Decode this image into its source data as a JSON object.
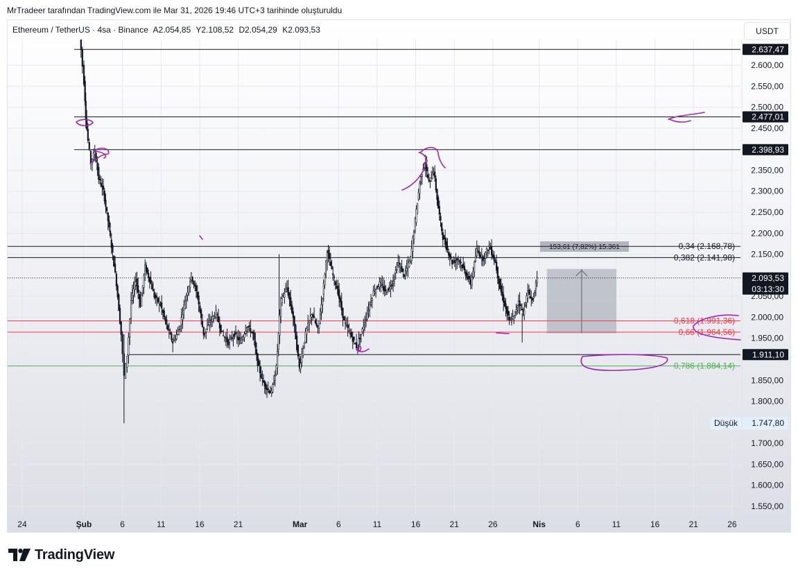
{
  "caption": "MrTradeer tarafından TradingView.com ile Mar 31, 2026 19:46 UTC+3 tarihinde oluşturuldu",
  "legend": {
    "symbol": "Ethereum / TetherUS · 4sa · Binance",
    "open": "A2.054,85",
    "high": "Y2.108,52",
    "low": "D2.054,29",
    "close": "K2.093,53"
  },
  "currency_button": "USDT",
  "brand": "TradingView",
  "colors": {
    "candle": "#131722",
    "drawing": "#9c27b0",
    "fib_red": "#f23645",
    "fib_green": "#4caf50",
    "axis_text": "#131722"
  },
  "chart_data": {
    "type": "candlestick",
    "symbol": "ETH/USDT",
    "interval": "4sa",
    "ylim": [
      1530,
      2675
    ],
    "y_ticks": [
      {
        "v": 2600,
        "label": "2.600,00"
      },
      {
        "v": 2550,
        "label": "2.550,00"
      },
      {
        "v": 2500,
        "label": "2.500,00"
      },
      {
        "v": 2450,
        "label": "2.450,00"
      },
      {
        "v": 2350,
        "label": "2.350,00"
      },
      {
        "v": 2300,
        "label": "2.300,00"
      },
      {
        "v": 2250,
        "label": "2.250,00"
      },
      {
        "v": 2200,
        "label": "2.200,00"
      },
      {
        "v": 2150,
        "label": "2.150,00"
      },
      {
        "v": 2050,
        "label": "2.050,00"
      },
      {
        "v": 2000,
        "label": "2.000,00"
      },
      {
        "v": 1950,
        "label": "1.950,00"
      },
      {
        "v": 1850,
        "label": "1.850,00"
      },
      {
        "v": 1800,
        "label": "1.800,00"
      },
      {
        "v": 1700,
        "label": "1.700,00"
      },
      {
        "v": 1650,
        "label": "1.650,00"
      },
      {
        "v": 1600,
        "label": "1.600,00"
      },
      {
        "v": 1550,
        "label": "1.550,00"
      }
    ],
    "x_ticks": [
      {
        "d": -8,
        "label": "24",
        "bold": false
      },
      {
        "d": 0,
        "label": "Şub",
        "bold": true
      },
      {
        "d": 5,
        "label": "6",
        "bold": false
      },
      {
        "d": 10,
        "label": "11",
        "bold": false
      },
      {
        "d": 15,
        "label": "16",
        "bold": false
      },
      {
        "d": 20,
        "label": "21",
        "bold": false
      },
      {
        "d": 28,
        "label": "Mar",
        "bold": true
      },
      {
        "d": 33,
        "label": "6",
        "bold": false
      },
      {
        "d": 38,
        "label": "11",
        "bold": false
      },
      {
        "d": 43,
        "label": "16",
        "bold": false
      },
      {
        "d": 48,
        "label": "21",
        "bold": false
      },
      {
        "d": 53,
        "label": "26",
        "bold": false
      },
      {
        "d": 59,
        "label": "Nis",
        "bold": true
      },
      {
        "d": 64,
        "label": "6",
        "bold": false
      },
      {
        "d": 69,
        "label": "11",
        "bold": false
      },
      {
        "d": 74,
        "label": "16",
        "bold": false
      },
      {
        "d": 79,
        "label": "21",
        "bold": false
      },
      {
        "d": 84,
        "label": "26",
        "bold": false
      }
    ],
    "price_path": [
      {
        "d": -0.6,
        "p": 2700
      },
      {
        "d": -0.3,
        "p": 2637
      },
      {
        "d": 0.1,
        "p": 2560
      },
      {
        "d": 0.3,
        "p": 2477
      },
      {
        "d": 0.6,
        "p": 2420
      },
      {
        "d": 1.0,
        "p": 2370
      },
      {
        "d": 1.5,
        "p": 2395
      },
      {
        "d": 2.0,
        "p": 2330
      },
      {
        "d": 2.6,
        "p": 2300
      },
      {
        "d": 3.2,
        "p": 2230
      },
      {
        "d": 3.8,
        "p": 2150
      },
      {
        "d": 4.3,
        "p": 2080
      },
      {
        "d": 4.9,
        "p": 1960
      },
      {
        "d": 5.3,
        "p": 1860
      },
      {
        "d": 5.7,
        "p": 1910
      },
      {
        "d": 6.2,
        "p": 2040
      },
      {
        "d": 6.8,
        "p": 2090
      },
      {
        "d": 7.4,
        "p": 2030
      },
      {
        "d": 8.0,
        "p": 2120
      },
      {
        "d": 8.6,
        "p": 2090
      },
      {
        "d": 9.2,
        "p": 2050
      },
      {
        "d": 10.0,
        "p": 2030
      },
      {
        "d": 10.8,
        "p": 1980
      },
      {
        "d": 11.6,
        "p": 1940
      },
      {
        "d": 12.4,
        "p": 1970
      },
      {
        "d": 13.2,
        "p": 2040
      },
      {
        "d": 14.0,
        "p": 2100
      },
      {
        "d": 14.8,
        "p": 2050
      },
      {
        "d": 15.6,
        "p": 1960
      },
      {
        "d": 16.4,
        "p": 1990
      },
      {
        "d": 17.2,
        "p": 2010
      },
      {
        "d": 18.0,
        "p": 1960
      },
      {
        "d": 18.8,
        "p": 1940
      },
      {
        "d": 19.6,
        "p": 1960
      },
      {
        "d": 20.4,
        "p": 1940
      },
      {
        "d": 21.2,
        "p": 1980
      },
      {
        "d": 22.0,
        "p": 1960
      },
      {
        "d": 22.6,
        "p": 1890
      },
      {
        "d": 23.2,
        "p": 1850
      },
      {
        "d": 23.8,
        "p": 1830
      },
      {
        "d": 24.4,
        "p": 1820
      },
      {
        "d": 25.0,
        "p": 1880
      },
      {
        "d": 25.6,
        "p": 2040
      },
      {
        "d": 26.4,
        "p": 2070
      },
      {
        "d": 27.2,
        "p": 2000
      },
      {
        "d": 28.0,
        "p": 1880
      },
      {
        "d": 28.8,
        "p": 1960
      },
      {
        "d": 29.6,
        "p": 2010
      },
      {
        "d": 30.4,
        "p": 1970
      },
      {
        "d": 31.0,
        "p": 2050
      },
      {
        "d": 31.6,
        "p": 2160
      },
      {
        "d": 32.2,
        "p": 2110
      },
      {
        "d": 33.0,
        "p": 2060
      },
      {
        "d": 33.8,
        "p": 1990
      },
      {
        "d": 34.6,
        "p": 1960
      },
      {
        "d": 35.4,
        "p": 1930
      },
      {
        "d": 36.0,
        "p": 1960
      },
      {
        "d": 36.8,
        "p": 2010
      },
      {
        "d": 37.6,
        "p": 2060
      },
      {
        "d": 38.4,
        "p": 2080
      },
      {
        "d": 39.2,
        "p": 2060
      },
      {
        "d": 40.0,
        "p": 2080
      },
      {
        "d": 40.8,
        "p": 2130
      },
      {
        "d": 41.6,
        "p": 2100
      },
      {
        "d": 42.4,
        "p": 2140
      },
      {
        "d": 43.0,
        "p": 2230
      },
      {
        "d": 43.6,
        "p": 2320
      },
      {
        "d": 44.2,
        "p": 2370
      },
      {
        "d": 44.8,
        "p": 2320
      },
      {
        "d": 45.4,
        "p": 2350
      },
      {
        "d": 46.0,
        "p": 2260
      },
      {
        "d": 46.6,
        "p": 2190
      },
      {
        "d": 47.2,
        "p": 2160
      },
      {
        "d": 47.8,
        "p": 2130
      },
      {
        "d": 48.6,
        "p": 2140
      },
      {
        "d": 49.4,
        "p": 2110
      },
      {
        "d": 50.2,
        "p": 2080
      },
      {
        "d": 51.0,
        "p": 2160
      },
      {
        "d": 51.8,
        "p": 2140
      },
      {
        "d": 52.6,
        "p": 2170
      },
      {
        "d": 53.4,
        "p": 2130
      },
      {
        "d": 54.0,
        "p": 2070
      },
      {
        "d": 54.6,
        "p": 2030
      },
      {
        "d": 55.2,
        "p": 1990
      },
      {
        "d": 55.8,
        "p": 2000
      },
      {
        "d": 56.4,
        "p": 2040
      },
      {
        "d": 57.0,
        "p": 2010
      },
      {
        "d": 57.6,
        "p": 2060
      },
      {
        "d": 58.2,
        "p": 2040
      },
      {
        "d": 58.8,
        "p": 2090
      }
    ],
    "horizontal_levels": [
      {
        "v": 2637.47,
        "label": "2.637,47"
      },
      {
        "v": 2477.01,
        "label": "2.477,01"
      },
      {
        "v": 2398.93,
        "label": "2.398,93"
      },
      {
        "v": 1911.1,
        "label": "1.911,10"
      }
    ],
    "fib_levels": [
      {
        "v": 2168.78,
        "label": "0,34 (2.168,78)",
        "color": "#131722"
      },
      {
        "v": 2141.98,
        "label": "0,382 (2.141,98)",
        "color": "#131722"
      },
      {
        "v": 1991.36,
        "label": "0,618 (1.991,36)",
        "color": "#f23645"
      },
      {
        "v": 1964.56,
        "label": "0,66 (1.964,56)",
        "color": "#f23645"
      },
      {
        "v": 1884.14,
        "label": "0,786 (1.884,14)",
        "color": "#4caf50"
      }
    ],
    "current_price": {
      "v": 2093.53,
      "label": "2.093,53",
      "countdown": "03:13:30"
    },
    "low_marker": {
      "v": 1747.8,
      "label": "1.747,80",
      "tag": "Düşük"
    },
    "measure_box": {
      "d_start": 60,
      "d_end": 69,
      "v_low": 1962,
      "v_high": 2115,
      "label": "153,61 (7,82%) 15.361"
    }
  }
}
